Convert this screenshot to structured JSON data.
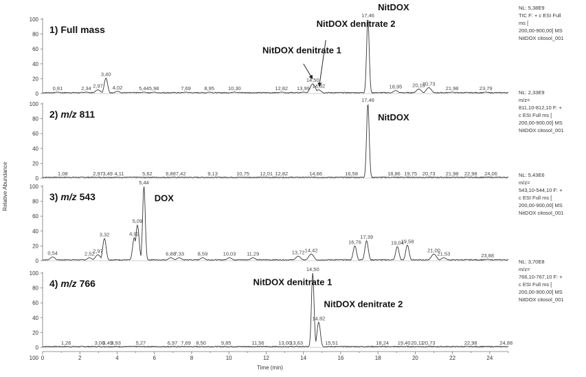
{
  "chart_data": {
    "type": "line",
    "xlabel": "Time (min)",
    "ylabel": "Relative Abundance",
    "xlim": [
      0,
      25
    ],
    "ylim": [
      0,
      100
    ],
    "x_ticks": [
      "0",
      "2",
      "4",
      "6",
      "8",
      "10",
      "12",
      "14",
      "16",
      "18",
      "20",
      "22",
      "24"
    ],
    "y_ticks": [
      "0",
      "20",
      "40",
      "60",
      "80",
      "100"
    ],
    "panels": [
      {
        "label": "1) Full mass",
        "side_text": [
          "NL: 5,38E9",
          "TIC F: + c ESI Full",
          "ms [",
          "200,00-900,00]  MS",
          "NitDOX citosol_001"
        ],
        "annotations": [
          {
            "text": "NitDOX",
            "x": 18.0,
            "y": 112
          },
          {
            "text": "NitDOX denitrate 2",
            "x": 14.7,
            "y": 90
          },
          {
            "text": "NitDOX denitrate 1",
            "x": 11.8,
            "y": 54
          }
        ],
        "peaks": [
          {
            "label": "0,81",
            "x": 0.81,
            "y": 2
          },
          {
            "label": "2,34",
            "x": 2.34,
            "y": 2
          },
          {
            "label": "2,97",
            "x": 2.97,
            "y": 5
          },
          {
            "label": "3,40",
            "x": 3.4,
            "y": 21
          },
          {
            "label": "4,02",
            "x": 4.02,
            "y": 3
          },
          {
            "label": "5,44",
            "x": 5.44,
            "y": 2
          },
          {
            "label": "5,98",
            "x": 5.98,
            "y": 2
          },
          {
            "label": "7,69",
            "x": 7.69,
            "y": 2
          },
          {
            "label": "8,95",
            "x": 8.95,
            "y": 2
          },
          {
            "label": "10,30",
            "x": 10.3,
            "y": 2
          },
          {
            "label": "12,82",
            "x": 12.82,
            "y": 2
          },
          {
            "label": "13,99",
            "x": 13.99,
            "y": 2
          },
          {
            "label": "14,50",
            "x": 14.5,
            "y": 13
          },
          {
            "label": "14,82",
            "x": 14.82,
            "y": 5
          },
          {
            "label": "17,46",
            "x": 17.46,
            "y": 100
          },
          {
            "label": "18,95",
            "x": 18.95,
            "y": 4
          },
          {
            "label": "20,19",
            "x": 20.19,
            "y": 6
          },
          {
            "label": "20,73",
            "x": 20.73,
            "y": 8
          },
          {
            "label": "21,98",
            "x": 21.98,
            "y": 2
          },
          {
            "label": "23,79",
            "x": 23.79,
            "y": 2
          }
        ]
      },
      {
        "label": "2) m/z 811",
        "label_prefix": "2) ",
        "label_italic": "m/z",
        "label_suffix": " 811",
        "side_text": [
          "NL: 2,33E9",
          "m/z=",
          "811,10-812,10 F: +",
          "c ESI Full ms [",
          "200,00-900,00]  MS",
          "NitDOX citosol_001"
        ],
        "annotations": [
          {
            "text": "NitDOX",
            "x": 18.0,
            "y": 78
          }
        ],
        "peaks": [
          {
            "label": "1,08",
            "x": 1.08,
            "y": 1
          },
          {
            "label": "2,97",
            "x": 2.97,
            "y": 1
          },
          {
            "label": "3,49",
            "x": 3.49,
            "y": 1
          },
          {
            "label": "4,11",
            "x": 4.11,
            "y": 1
          },
          {
            "label": "5,62",
            "x": 5.62,
            "y": 1
          },
          {
            "label": "6,88",
            "x": 6.88,
            "y": 1
          },
          {
            "label": "7,42",
            "x": 7.42,
            "y": 1
          },
          {
            "label": "9,13",
            "x": 9.13,
            "y": 1
          },
          {
            "label": "10,75",
            "x": 10.75,
            "y": 1
          },
          {
            "label": "12,01",
            "x": 12.01,
            "y": 1
          },
          {
            "label": "12,82",
            "x": 12.82,
            "y": 1
          },
          {
            "label": "14,66",
            "x": 14.66,
            "y": 1
          },
          {
            "label": "16,58",
            "x": 16.58,
            "y": 1
          },
          {
            "label": "17,46",
            "x": 17.46,
            "y": 100
          },
          {
            "label": "18,86",
            "x": 18.86,
            "y": 1
          },
          {
            "label": "19,75",
            "x": 19.75,
            "y": 1
          },
          {
            "label": "20,73",
            "x": 20.73,
            "y": 1
          },
          {
            "label": "21,98",
            "x": 21.98,
            "y": 1
          },
          {
            "label": "22,98",
            "x": 22.98,
            "y": 1
          },
          {
            "label": "24,06",
            "x": 24.06,
            "y": 1
          }
        ]
      },
      {
        "label": "3) m/z 543",
        "label_prefix": "3) ",
        "label_italic": "m/z",
        "label_suffix": " 543",
        "side_text": [
          "NL: 5,43E6",
          "m/z=",
          "543,10-544,10 F: +",
          "c ESI Full ms [",
          "200,00-900,00]  MS",
          "NitDOX citosol_001"
        ],
        "annotations": [
          {
            "text": "DOX",
            "x": 6.0,
            "y": 80
          }
        ],
        "peaks": [
          {
            "label": "0,54",
            "x": 0.54,
            "y": 5
          },
          {
            "label": "2,52",
            "x": 2.52,
            "y": 4
          },
          {
            "label": "2,97",
            "x": 2.97,
            "y": 8
          },
          {
            "label": "3,32",
            "x": 3.32,
            "y": 30
          },
          {
            "label": "4,92",
            "x": 4.92,
            "y": 31
          },
          {
            "label": "5,09",
            "x": 5.09,
            "y": 48
          },
          {
            "label": "5,44",
            "x": 5.44,
            "y": 100
          },
          {
            "label": "6,88",
            "x": 6.88,
            "y": 4
          },
          {
            "label": "7,33",
            "x": 7.33,
            "y": 4
          },
          {
            "label": "8,59",
            "x": 8.59,
            "y": 4
          },
          {
            "label": "10,03",
            "x": 10.03,
            "y": 4
          },
          {
            "label": "11,29",
            "x": 11.29,
            "y": 4
          },
          {
            "label": "13,72",
            "x": 13.72,
            "y": 6
          },
          {
            "label": "14,42",
            "x": 14.42,
            "y": 9
          },
          {
            "label": "16,76",
            "x": 16.76,
            "y": 20
          },
          {
            "label": "17,39",
            "x": 17.39,
            "y": 27
          },
          {
            "label": "19,04",
            "x": 19.04,
            "y": 19
          },
          {
            "label": "19,58",
            "x": 19.58,
            "y": 21
          },
          {
            "label": "21,00",
            "x": 21.0,
            "y": 9
          },
          {
            "label": "21,53",
            "x": 21.53,
            "y": 4
          },
          {
            "label": "23,88",
            "x": 23.88,
            "y": 2
          }
        ]
      },
      {
        "label": "4) m/z 766",
        "label_prefix": "4) ",
        "label_italic": "m/z",
        "label_suffix": " 766",
        "side_text": [
          "NL: 3,70E8",
          "m/z=",
          "766,10-767,10 F: +",
          "c ESI Full ms [",
          "200,00-900,00]  MS",
          "NitDOX citosol_001"
        ],
        "annotations": [
          {
            "text": "NitDOX denitrate 1",
            "x": 11.3,
            "y": 84
          },
          {
            "text": "NitDOX denitrate 2",
            "x": 15.1,
            "y": 54
          }
        ],
        "peaks": [
          {
            "label": "1,26",
            "x": 1.26,
            "y": 1
          },
          {
            "label": "3,06",
            "x": 3.06,
            "y": 1
          },
          {
            "label": "3,49",
            "x": 3.49,
            "y": 1
          },
          {
            "label": "3,93",
            "x": 3.93,
            "y": 1
          },
          {
            "label": "5,27",
            "x": 5.27,
            "y": 1
          },
          {
            "label": "6,97",
            "x": 6.97,
            "y": 1
          },
          {
            "label": "7,69",
            "x": 7.69,
            "y": 1
          },
          {
            "label": "8,50",
            "x": 8.5,
            "y": 1
          },
          {
            "label": "9,85",
            "x": 9.85,
            "y": 1
          },
          {
            "label": "11,56",
            "x": 11.56,
            "y": 1
          },
          {
            "label": "13,00",
            "x": 13.0,
            "y": 1
          },
          {
            "label": "13,63",
            "x": 13.63,
            "y": 1
          },
          {
            "label": "14,50",
            "x": 14.5,
            "y": 100
          },
          {
            "label": "14,82",
            "x": 14.82,
            "y": 34
          },
          {
            "label": "15,51",
            "x": 15.51,
            "y": 1
          },
          {
            "label": "18,24",
            "x": 18.24,
            "y": 1
          },
          {
            "label": "19,40",
            "x": 19.4,
            "y": 1
          },
          {
            "label": "20,11",
            "x": 20.11,
            "y": 1
          },
          {
            "label": "20,73",
            "x": 20.73,
            "y": 1
          },
          {
            "label": "22,98",
            "x": 22.98,
            "y": 1
          },
          {
            "label": "24,88",
            "x": 24.88,
            "y": 1
          }
        ]
      }
    ]
  }
}
